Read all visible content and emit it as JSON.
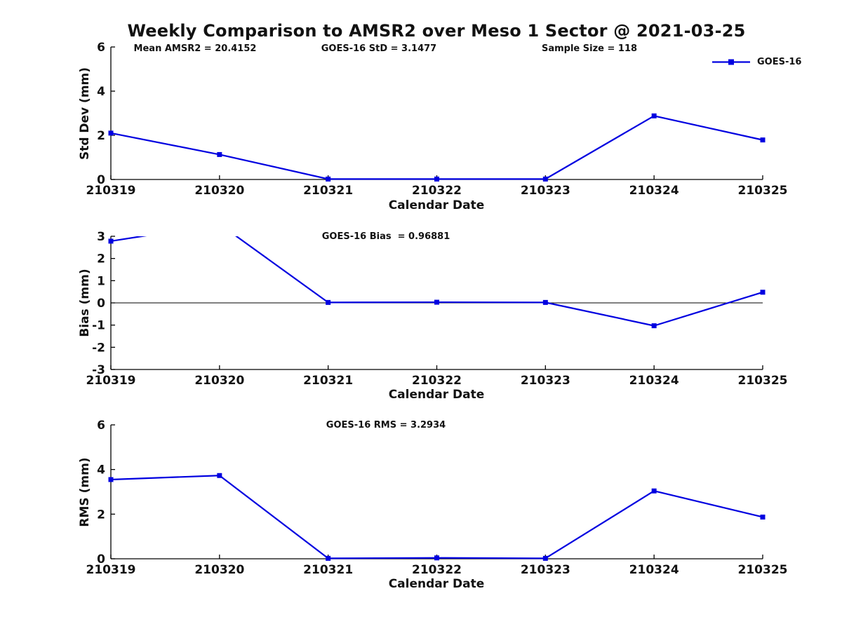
{
  "title": "Weekly Comparison to AMSR2 over Meso 1 Sector @ 2021-03-25",
  "legend": {
    "label": "GOES-16"
  },
  "colors": {
    "line": "#0000E0",
    "axis": "#000000",
    "zero_line": "#000000",
    "text": "#111111",
    "background": "#FFFFFF"
  },
  "chart_data": [
    {
      "type": "line",
      "ylabel": "Std Dev (mm)",
      "xlabel": "Calendar Date",
      "categories": [
        "210319",
        "210320",
        "210321",
        "210322",
        "210323",
        "210324",
        "210325"
      ],
      "series": [
        {
          "name": "GOES-16",
          "values": [
            2.1,
            1.13,
            0.02,
            0.02,
            0.02,
            2.88,
            1.79
          ]
        }
      ],
      "ylim": [
        0,
        6
      ],
      "yticks": [
        0,
        2,
        4,
        6
      ],
      "grid": false,
      "legend_position": "top-right",
      "annotations": [
        "Mean AMSR2 = 20.4152",
        "GOES-16 StD = 3.1477",
        "Sample Size = 118"
      ]
    },
    {
      "type": "line",
      "ylabel": "Bias (mm)",
      "xlabel": "Calendar Date",
      "categories": [
        "210319",
        "210320",
        "210321",
        "210322",
        "210323",
        "210324",
        "210325"
      ],
      "series": [
        {
          "name": "GOES-16",
          "values": [
            2.78,
            3.55,
            0.02,
            0.03,
            0.02,
            -1.03,
            0.48
          ]
        }
      ],
      "ylim": [
        -3,
        3
      ],
      "yticks": [
        -3,
        -2,
        -1,
        0,
        1,
        2,
        3
      ],
      "grid": false,
      "zero_line": true,
      "annotations": [
        "GOES-16 Bias  = 0.96881"
      ]
    },
    {
      "type": "line",
      "ylabel": "RMS (mm)",
      "xlabel": "Calendar Date",
      "categories": [
        "210319",
        "210320",
        "210321",
        "210322",
        "210323",
        "210324",
        "210325"
      ],
      "series": [
        {
          "name": "GOES-16",
          "values": [
            3.55,
            3.73,
            0.02,
            0.04,
            0.02,
            3.04,
            1.87
          ]
        }
      ],
      "ylim": [
        0,
        6
      ],
      "yticks": [
        0,
        2,
        4,
        6
      ],
      "grid": false,
      "annotations": [
        "GOES-16 RMS = 3.2934"
      ]
    }
  ]
}
